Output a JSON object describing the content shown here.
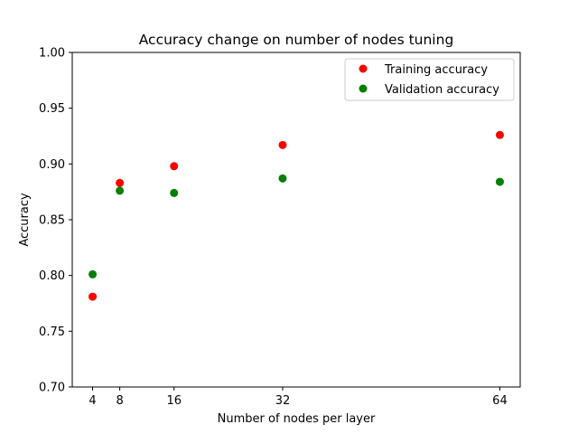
{
  "chart_data": {
    "type": "scatter",
    "title": "Accuracy change on number of nodes tuning",
    "xlabel": "Number of nodes per layer",
    "ylabel": "Accuracy",
    "xlim": [
      1,
      67
    ],
    "ylim": [
      0.7,
      1.0
    ],
    "xticks": [
      4,
      8,
      16,
      32,
      64
    ],
    "xtick_labels": [
      "4",
      "8",
      "16",
      "32",
      "64"
    ],
    "yticks": [
      0.7,
      0.75,
      0.8,
      0.85,
      0.9,
      0.95,
      1.0
    ],
    "ytick_labels": [
      "0.70",
      "0.75",
      "0.80",
      "0.85",
      "0.90",
      "0.95",
      "1.00"
    ],
    "grid": false,
    "legend_position": "top-right",
    "series": [
      {
        "name": "Training accuracy",
        "color": "#ff0000",
        "x": [
          4,
          8,
          16,
          32,
          64
        ],
        "y": [
          0.781,
          0.883,
          0.898,
          0.917,
          0.926
        ]
      },
      {
        "name": "Validation accuracy",
        "color": "#008000",
        "x": [
          4,
          8,
          16,
          32,
          64
        ],
        "y": [
          0.801,
          0.876,
          0.874,
          0.887,
          0.884
        ]
      }
    ]
  }
}
